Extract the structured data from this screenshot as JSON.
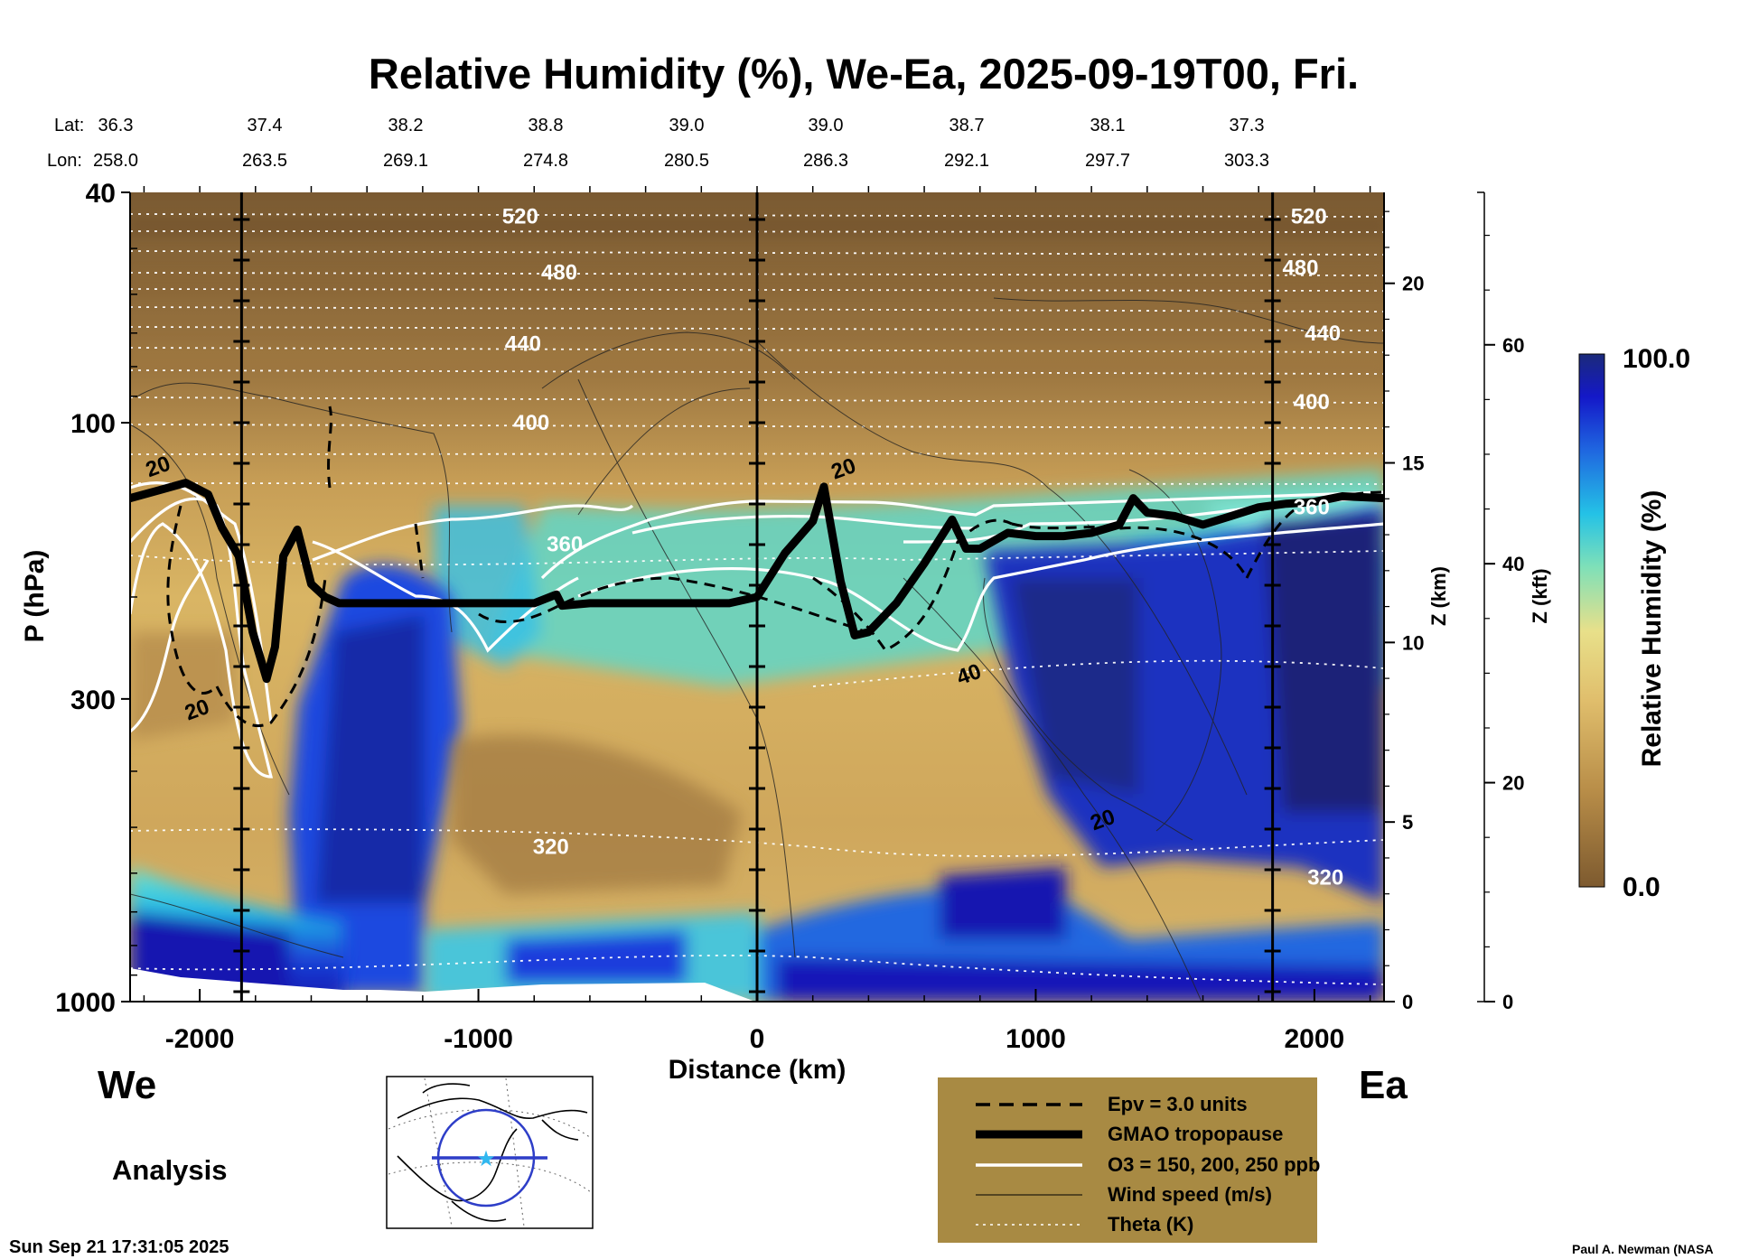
{
  "chart_data": {
    "type": "heatmap",
    "title": "Relative Humidity (%), We-Ea, 2025-09-19T00, Fri.",
    "xlabel": "Distance (km)",
    "ylabel": "P (hPa)",
    "xlim": [
      -2250,
      2250
    ],
    "x_ticks": [
      "-2000",
      "-1000",
      "0",
      "1000",
      "2000"
    ],
    "x_tick_values": [
      -2000,
      -1000,
      0,
      1000,
      2000
    ],
    "ylim_hpa": [
      1000,
      40
    ],
    "y_ticks": [
      "40",
      "100",
      "300",
      "1000"
    ],
    "y_tick_values": [
      40,
      100,
      300,
      1000
    ],
    "z_km_label": "Z (km)",
    "z_km_ticks": [
      "0",
      "5",
      "10",
      "15",
      "20"
    ],
    "z_kft_label": "Z (kft)",
    "z_kft_ticks": [
      "0",
      "20",
      "40",
      "60"
    ],
    "colorbar": {
      "label": "Relative Humidity (%)",
      "max_label": "100.0",
      "min_label": "0.0",
      "range": [
        0,
        100
      ]
    },
    "lat_label": "Lat:",
    "lon_label": "Lon:",
    "lat": [
      "36.3",
      "37.4",
      "38.2",
      "38.8",
      "39.0",
      "39.0",
      "38.7",
      "38.1",
      "37.3"
    ],
    "lon": [
      "258.0",
      "263.5",
      "269.1",
      "274.8",
      "280.5",
      "286.3",
      "292.1",
      "297.7",
      "303.3"
    ],
    "vertical_markers_km": [
      -1850,
      0,
      1850
    ],
    "theta_labels": [
      {
        "text": "520",
        "x_km": -850,
        "p": 44
      },
      {
        "text": "480",
        "x_km": -710,
        "p": 55
      },
      {
        "text": "440",
        "x_km": -840,
        "p": 73
      },
      {
        "text": "400",
        "x_km": -810,
        "p": 100
      },
      {
        "text": "360",
        "x_km": -690,
        "p": 162
      },
      {
        "text": "320",
        "x_km": -740,
        "p": 540
      },
      {
        "text": "520",
        "x_km": 1980,
        "p": 44
      },
      {
        "text": "480",
        "x_km": 1950,
        "p": 54
      },
      {
        "text": "440",
        "x_km": 2030,
        "p": 70
      },
      {
        "text": "400",
        "x_km": 1990,
        "p": 92
      },
      {
        "text": "360",
        "x_km": 1990,
        "p": 140
      },
      {
        "text": "320",
        "x_km": 2040,
        "p": 610
      }
    ],
    "wind_labels": [
      {
        "text": "20",
        "x_km": -2150,
        "p": 119
      },
      {
        "text": "20",
        "x_km": 310,
        "p": 120
      },
      {
        "text": "20",
        "x_km": -2010,
        "p": 313
      },
      {
        "text": "40",
        "x_km": 760,
        "p": 272
      },
      {
        "text": "20",
        "x_km": 1240,
        "p": 485
      }
    ],
    "tropopause": {
      "x_km": [
        -2250,
        -2150,
        -2050,
        -1970,
        -1920,
        -1860,
        -1810,
        -1760,
        -1730,
        -1700,
        -1650,
        -1600,
        -1550,
        -1500,
        -1200,
        -1000,
        -800,
        -720,
        -700,
        -600,
        -400,
        -200,
        -100,
        0,
        100,
        200,
        240,
        300,
        350,
        400,
        500,
        600,
        700,
        750,
        800,
        900,
        1000,
        1100,
        1200,
        1300,
        1350,
        1400,
        1500,
        1600,
        1700,
        1800,
        1900,
        2000,
        2100,
        2250
      ],
      "p": [
        135,
        131,
        127,
        133,
        152,
        170,
        230,
        277,
        244,
        170,
        153,
        190,
        200,
        205,
        205,
        205,
        205,
        198,
        207,
        205,
        205,
        205,
        205,
        200,
        168,
        148,
        129,
        188,
        233,
        230,
        205,
        175,
        147,
        165,
        165,
        155,
        157,
        157,
        155,
        150,
        135,
        143,
        145,
        150,
        145,
        140,
        138,
        137,
        134,
        135
      ]
    },
    "legend": [
      {
        "label": "Epv = 3.0 units",
        "style": "dashed"
      },
      {
        "label": "GMAO tropopause",
        "style": "thick"
      },
      {
        "label": "O3 = 150, 200, 250 ppb",
        "style": "white"
      },
      {
        "label": "Wind speed (m/s)",
        "style": "thin"
      },
      {
        "label": "Theta (K)",
        "style": "dotted"
      }
    ]
  },
  "direction": {
    "west": "We",
    "east": "Ea"
  },
  "run_type": "Analysis",
  "timestamp": "Sun Sep 21 17:31:05 2025",
  "credit": "Paul A. Newman (NASA",
  "colors": {
    "dry": "#7d5a2f",
    "mid": "#e8cf72",
    "wet": "#1a2e8c",
    "legend_bg": "#a88a43"
  }
}
